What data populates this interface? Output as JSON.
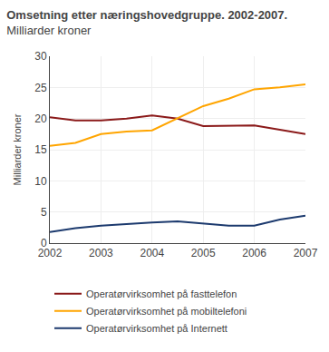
{
  "chart_data": {
    "type": "line",
    "title": "Omsetning etter næringshovedgruppe. 2002-2007.",
    "subtitle": "Milliarder kroner",
    "ylabel": "Milliarder kroner",
    "x": [
      2002,
      2002.5,
      2003,
      2003.5,
      2004,
      2004.5,
      2005,
      2005.5,
      2006,
      2006.5,
      2007
    ],
    "series": [
      {
        "name": "Operatørvirksomhet på fasttelefon",
        "color": "#8B1A1A",
        "values": [
          20.2,
          19.7,
          19.7,
          20.0,
          20.5,
          20.0,
          18.8,
          18.8,
          18.9,
          18.2,
          17.5
        ]
      },
      {
        "name": "Operatørvirksomhet på mobiltelefoni",
        "color": "#FFA500",
        "values": [
          15.6,
          16.1,
          17.5,
          17.9,
          18.1,
          20.0,
          22.0,
          23.2,
          24.7,
          25.0,
          25.5
        ]
      },
      {
        "name": "Operatørvirksomhet på Internett",
        "color": "#1C3A6E",
        "values": [
          1.8,
          2.4,
          2.8,
          3.1,
          3.3,
          3.5,
          3.1,
          2.8,
          2.8,
          3.8,
          4.4
        ]
      }
    ],
    "xlim": [
      2002,
      2007
    ],
    "xticks": [
      2002,
      2003,
      2004,
      2005,
      2006,
      2007
    ],
    "ylim": [
      0,
      30
    ],
    "yticks": [
      0,
      5,
      10,
      15,
      20,
      25,
      30
    ],
    "grid": true,
    "legend": "bottom"
  }
}
